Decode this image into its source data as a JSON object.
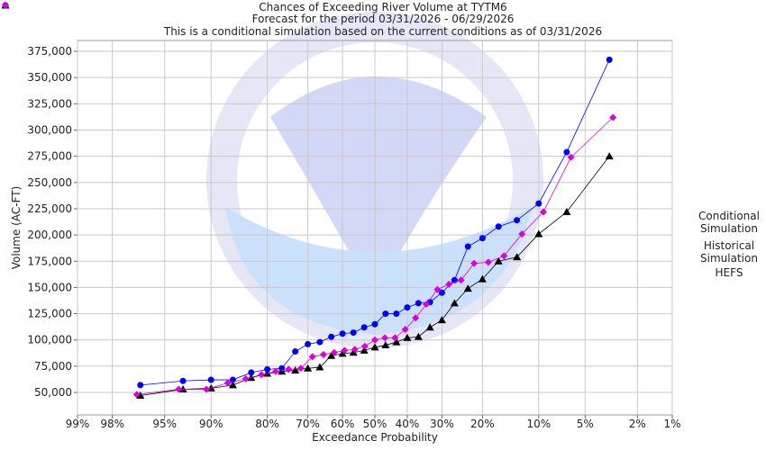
{
  "chart_data": {
    "type": "line",
    "title": "Chances of Exceeding River Volume at TYTM6",
    "subtitle": [
      "Forecast for the period 03/31/2026 - 06/29/2026",
      "This is a conditional simulation based on the current conditions as of 03/31/2026"
    ],
    "x_label": "Exceedance Probability",
    "y_label": "Volume (AC-FT)",
    "x_scale": "probability",
    "xlim": [
      99,
      1
    ],
    "xticks": [
      {
        "value": 99,
        "label": "99%"
      },
      {
        "value": 98,
        "label": "98%"
      },
      {
        "value": 95,
        "label": "95%"
      },
      {
        "value": 90,
        "label": "90%"
      },
      {
        "value": 80,
        "label": "80%"
      },
      {
        "value": 70,
        "label": "70%"
      },
      {
        "value": 60,
        "label": "60%"
      },
      {
        "value": 50,
        "label": "50%"
      },
      {
        "value": 40,
        "label": "40%"
      },
      {
        "value": 30,
        "label": "30%"
      },
      {
        "value": 20,
        "label": "20%"
      },
      {
        "value": 10,
        "label": "10%"
      },
      {
        "value": 5,
        "label": "5%"
      },
      {
        "value": 2,
        "label": "2%"
      },
      {
        "value": 1,
        "label": "1%"
      }
    ],
    "ylim": [
      28600,
      385300
    ],
    "yticks": [
      {
        "value": 50000,
        "label": "50,000"
      },
      {
        "value": 75000,
        "label": "75,000"
      },
      {
        "value": 100000,
        "label": "100,000"
      },
      {
        "value": 125000,
        "label": "125,000"
      },
      {
        "value": 150000,
        "label": "150,000"
      },
      {
        "value": 175000,
        "label": "175,000"
      },
      {
        "value": 200000,
        "label": "200,000"
      },
      {
        "value": 225000,
        "label": "225,000"
      },
      {
        "value": 250000,
        "label": "250,000"
      },
      {
        "value": 275000,
        "label": "275,000"
      },
      {
        "value": 300000,
        "label": "300,000"
      },
      {
        "value": 325000,
        "label": "325,000"
      },
      {
        "value": 350000,
        "label": "350,000"
      },
      {
        "value": 375000,
        "label": "375,000"
      }
    ],
    "grid": true,
    "legend": "right",
    "series": [
      {
        "name": "Conditional Simulation",
        "color": "#000000",
        "marker": "triangle",
        "x": [
          96.67,
          93.33,
          90,
          86.67,
          83.33,
          80,
          76.67,
          73.33,
          70,
          66.67,
          63.33,
          60,
          56.67,
          53.33,
          50,
          46.67,
          43.33,
          40,
          36.67,
          33.33,
          30,
          26.67,
          23.33,
          20,
          16.67,
          13.33,
          10,
          6.67,
          3.33
        ],
        "values": [
          47000,
          53000,
          54000,
          57000,
          64000,
          68000,
          70000,
          71000,
          73000,
          74000,
          85000,
          87000,
          88000,
          90000,
          93000,
          95000,
          98000,
          102000,
          103000,
          112000,
          119000,
          135000,
          149000,
          158000,
          175000,
          179000,
          201000,
          222000,
          275000
        ]
      },
      {
        "name": "Historical Simulation",
        "color": "#0000ff",
        "marker": "circle",
        "x": [
          96.67,
          93.33,
          90,
          86.67,
          83.33,
          80,
          76.67,
          73.33,
          70,
          66.67,
          63.33,
          60,
          56.67,
          53.33,
          50,
          46.67,
          43.33,
          40,
          36.67,
          33.33,
          30,
          26.67,
          23.33,
          20,
          16.67,
          13.33,
          10,
          6.67,
          3.33
        ],
        "values": [
          57000,
          61000,
          62000,
          62000,
          69000,
          72000,
          73000,
          89000,
          96000,
          98000,
          103000,
          106000,
          107000,
          112000,
          115000,
          125000,
          125000,
          131000,
          135000,
          136000,
          145000,
          157000,
          189000,
          197000,
          208000,
          214000,
          230000,
          279000,
          367000
        ]
      },
      {
        "name": "HEFS",
        "color": "#dd00dd",
        "marker": "diamond",
        "x": [
          96.875,
          93.75,
          90.625,
          87.5,
          84.375,
          81.25,
          78.125,
          75,
          71.875,
          68.75,
          65.625,
          62.5,
          59.375,
          56.25,
          53.125,
          50,
          46.875,
          43.75,
          40.625,
          37.5,
          34.375,
          31.25,
          28.125,
          25,
          21.875,
          18.75,
          15.625,
          12.5,
          9.375,
          6.25,
          3.125
        ],
        "values": [
          48000,
          53000,
          53000,
          59000,
          63000,
          67000,
          70000,
          72000,
          73000,
          84000,
          86000,
          88000,
          90000,
          91000,
          94000,
          100000,
          102000,
          102000,
          110000,
          121000,
          134000,
          148000,
          153000,
          157000,
          173000,
          174000,
          180000,
          201000,
          222000,
          274000,
          312000
        ]
      }
    ]
  }
}
